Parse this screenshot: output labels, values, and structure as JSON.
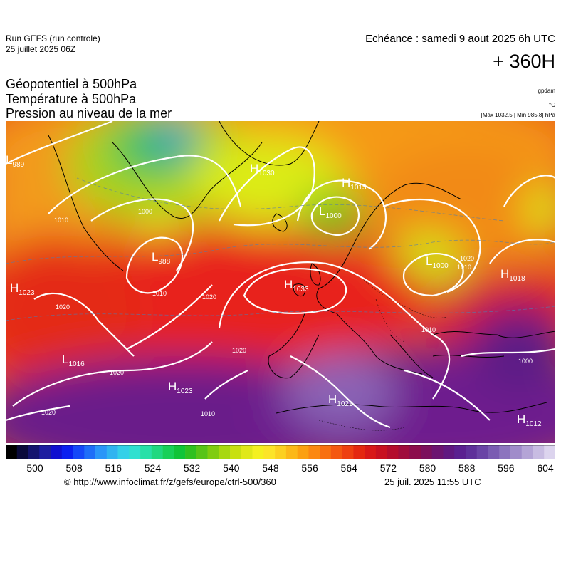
{
  "header": {
    "run_line1": "Run GEFS (run controle)",
    "run_line2": "25 juillet 2025 06Z",
    "valid_time": "Echéance : samedi 9 aout 2025 6h UTC",
    "lead_time": "+ 360H",
    "title_lines": [
      "Géopotentiel à 500hPa",
      "Température à 500hPa",
      "Pression au niveau de la mer"
    ],
    "unit_geopotential": "gpdam",
    "unit_temperature": "°C",
    "pressure_range": "[Max 1032.5 | Min 985.8] hPa"
  },
  "map": {
    "pressure_centers": [
      {
        "type": "H",
        "value": "1030"
      },
      {
        "type": "H",
        "value": "1015"
      },
      {
        "type": "L",
        "value": "1000"
      },
      {
        "type": "L",
        "value": "988"
      },
      {
        "type": "H",
        "value": "1023"
      },
      {
        "type": "H",
        "value": "1033"
      },
      {
        "type": "H",
        "value": "1018"
      },
      {
        "type": "L",
        "value": "1016"
      },
      {
        "type": "H",
        "value": "1023"
      },
      {
        "type": "H",
        "value": "1021"
      },
      {
        "type": "H",
        "value": "1012"
      },
      {
        "type": "L",
        "value": "989"
      },
      {
        "type": "L",
        "value": "1000"
      }
    ],
    "isobar_labels": [
      "1010",
      "1000",
      "1010",
      "1020",
      "1020",
      "1020",
      "1020",
      "1020",
      "1010",
      "1010",
      "1020",
      "1010",
      "1000"
    ],
    "colors": {
      "high_geopotential": "#6a1a8a",
      "mid_geopotential": "#e02a10",
      "low_geopotential": "#2a7ad0",
      "isobar": "#ffffff",
      "coastline": "#000000"
    }
  },
  "colorbar": {
    "tick_labels": [
      "500",
      "508",
      "516",
      "524",
      "532",
      "540",
      "548",
      "556",
      "564",
      "572",
      "580",
      "588",
      "596",
      "604"
    ],
    "colors": [
      "#000000",
      "#0a0a3a",
      "#14146e",
      "#1e1ea0",
      "#1010d0",
      "#0a20f0",
      "#1448f8",
      "#1e6ef8",
      "#2a96f8",
      "#30b4f0",
      "#34d0e8",
      "#30e0d0",
      "#28e0a8",
      "#20d880",
      "#18d058",
      "#10c438",
      "#30c020",
      "#58c418",
      "#80cc10",
      "#a8d810",
      "#c8e010",
      "#e0e818",
      "#f4f020",
      "#fce428",
      "#fcd020",
      "#fcb818",
      "#fca010",
      "#fc8810",
      "#f87010",
      "#f45810",
      "#ee4010",
      "#e42810",
      "#d81818",
      "#c81020",
      "#b40c2c",
      "#a00c3c",
      "#8c0c4c",
      "#7c105c",
      "#6c1470",
      "#601880",
      "#5a2090",
      "#5e309a",
      "#6a44a6",
      "#7a5cb2",
      "#8c74be",
      "#a08cca",
      "#b4a4d6",
      "#c8bce2",
      "#dcd4ee"
    ]
  },
  "footer": {
    "source": "© http://www.infoclimat.fr/z/gefs/europe/ctrl-500/360",
    "generated": "25 juil. 2025 11:55 UTC"
  }
}
